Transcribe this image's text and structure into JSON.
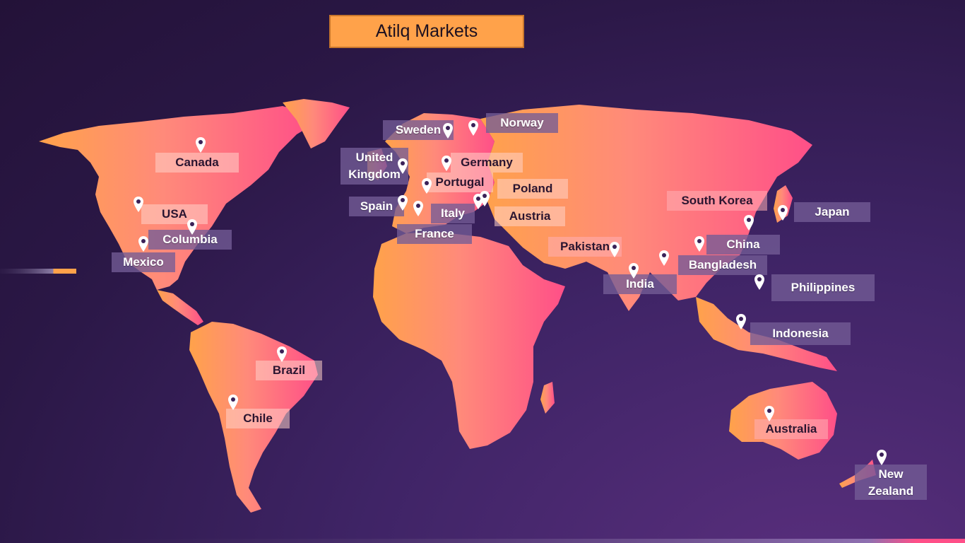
{
  "title": "Atilq Markets",
  "colors": {
    "map_start": "#ffa24a",
    "map_end": "#ff4f88",
    "accent": "#ffa24a",
    "label_bg": "#735c96"
  },
  "markets": [
    {
      "name": "Canada",
      "style": "light"
    },
    {
      "name": "USA",
      "style": "light"
    },
    {
      "name": "Columbia",
      "style": "dark"
    },
    {
      "name": "Mexico",
      "style": "dark"
    },
    {
      "name": "Brazil",
      "style": "light"
    },
    {
      "name": "Chile",
      "style": "light"
    },
    {
      "name": "Sweden",
      "style": "dark"
    },
    {
      "name": "Norway",
      "style": "dark"
    },
    {
      "name": "United Kingdom",
      "style": "dark"
    },
    {
      "name": "Germany",
      "style": "light"
    },
    {
      "name": "Portugal",
      "style": "light"
    },
    {
      "name": "Poland",
      "style": "light"
    },
    {
      "name": "Spain",
      "style": "dark"
    },
    {
      "name": "Italy",
      "style": "dark"
    },
    {
      "name": "Austria",
      "style": "light"
    },
    {
      "name": "France",
      "style": "dark"
    },
    {
      "name": "South Korea",
      "style": "mid"
    },
    {
      "name": "Japan",
      "style": "dark"
    },
    {
      "name": "Pakistan",
      "style": "mid"
    },
    {
      "name": "China",
      "style": "dark"
    },
    {
      "name": "Bangladesh",
      "style": "dark"
    },
    {
      "name": "India",
      "style": "dark"
    },
    {
      "name": "Philippines",
      "style": "dark"
    },
    {
      "name": "Indonesia",
      "style": "dark"
    },
    {
      "name": "Australia",
      "style": "mid"
    },
    {
      "name": "New Zealand",
      "style": "dark"
    }
  ]
}
